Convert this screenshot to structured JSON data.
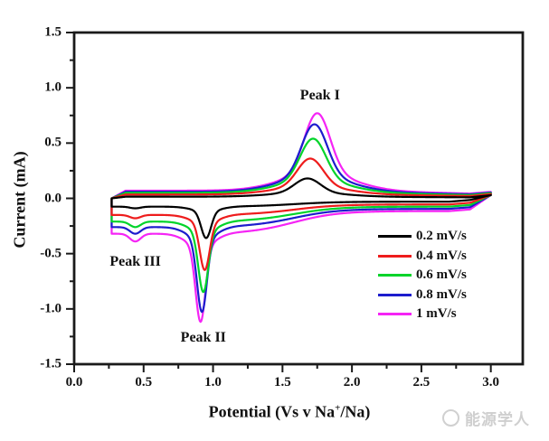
{
  "watermark": {
    "text": "能源学人"
  },
  "chart_data": {
    "type": "line",
    "subtype": "cyclic-voltammogram",
    "title": "",
    "xlabel": "Potential (Vs v Na+/Na)",
    "xlabel_parts": {
      "pre": "Potential (Vs v Na",
      "sup": "+",
      "post": "/Na)"
    },
    "ylabel": "Current (mA)",
    "xlim": [
      0,
      3.23
    ],
    "ylim": [
      -1.5,
      1.5
    ],
    "x_ticks": [
      0.0,
      0.5,
      1.0,
      1.5,
      2.0,
      2.5,
      3.0
    ],
    "x_tick_labels": [
      "0.0",
      "0.5",
      "1.0",
      "1.5",
      "2.0",
      "2.5",
      "3.0"
    ],
    "y_ticks": [
      -1.5,
      -1.0,
      -0.5,
      0.0,
      0.5,
      1.0,
      1.5
    ],
    "y_tick_labels": [
      "-1.5",
      "-1.0",
      "-0.5",
      "0.0",
      "0.5",
      "1.0",
      "1.5"
    ],
    "minor_tick_step": 0.25,
    "grid": false,
    "legend_position": "lower-right",
    "potential_window": [
      0.27,
      3.0
    ],
    "annotations": [
      {
        "text": "Peak I",
        "v": 1.77,
        "i": 0.93
      },
      {
        "text": "Peak II",
        "v": 0.93,
        "i": -1.26
      },
      {
        "text": "Peak III",
        "v": 0.44,
        "i": -0.58
      }
    ],
    "series": [
      {
        "name": "0.2 mV/s",
        "color": "#000000",
        "anodic_peak": {
          "v": 1.68,
          "i": 0.18
        },
        "cathodic_peak2": {
          "v": 0.95,
          "i": -0.36
        },
        "cathodic_peak3": {
          "v": 0.44,
          "i": -0.09
        },
        "up_base": 0.015,
        "dn_near": 0.075,
        "dn_far": 0.03
      },
      {
        "name": "0.4 mV/s",
        "color": "#ee1c1c",
        "anodic_peak": {
          "v": 1.7,
          "i": 0.36
        },
        "cathodic_peak2": {
          "v": 0.94,
          "i": -0.65
        },
        "cathodic_peak3": {
          "v": 0.44,
          "i": -0.18
        },
        "up_base": 0.035,
        "dn_near": 0.15,
        "dn_far": 0.055
      },
      {
        "name": "0.6 mV/s",
        "color": "#00d42a",
        "anodic_peak": {
          "v": 1.72,
          "i": 0.54
        },
        "cathodic_peak2": {
          "v": 0.93,
          "i": -0.85
        },
        "cathodic_peak3": {
          "v": 0.44,
          "i": -0.26
        },
        "up_base": 0.05,
        "dn_near": 0.21,
        "dn_far": 0.075
      },
      {
        "name": "0.8 mV/s",
        "color": "#1c1ccd",
        "anodic_peak": {
          "v": 1.73,
          "i": 0.67
        },
        "cathodic_peak2": {
          "v": 0.92,
          "i": -1.03
        },
        "cathodic_peak3": {
          "v": 0.44,
          "i": -0.32
        },
        "up_base": 0.06,
        "dn_near": 0.26,
        "dn_far": 0.095
      },
      {
        "name": "1 mV/s",
        "color": "#f524f5",
        "anodic_peak": {
          "v": 1.75,
          "i": 0.77
        },
        "cathodic_peak2": {
          "v": 0.91,
          "i": -1.12
        },
        "cathodic_peak3": {
          "v": 0.44,
          "i": -0.39
        },
        "up_base": 0.07,
        "dn_near": 0.32,
        "dn_far": 0.115
      }
    ]
  }
}
